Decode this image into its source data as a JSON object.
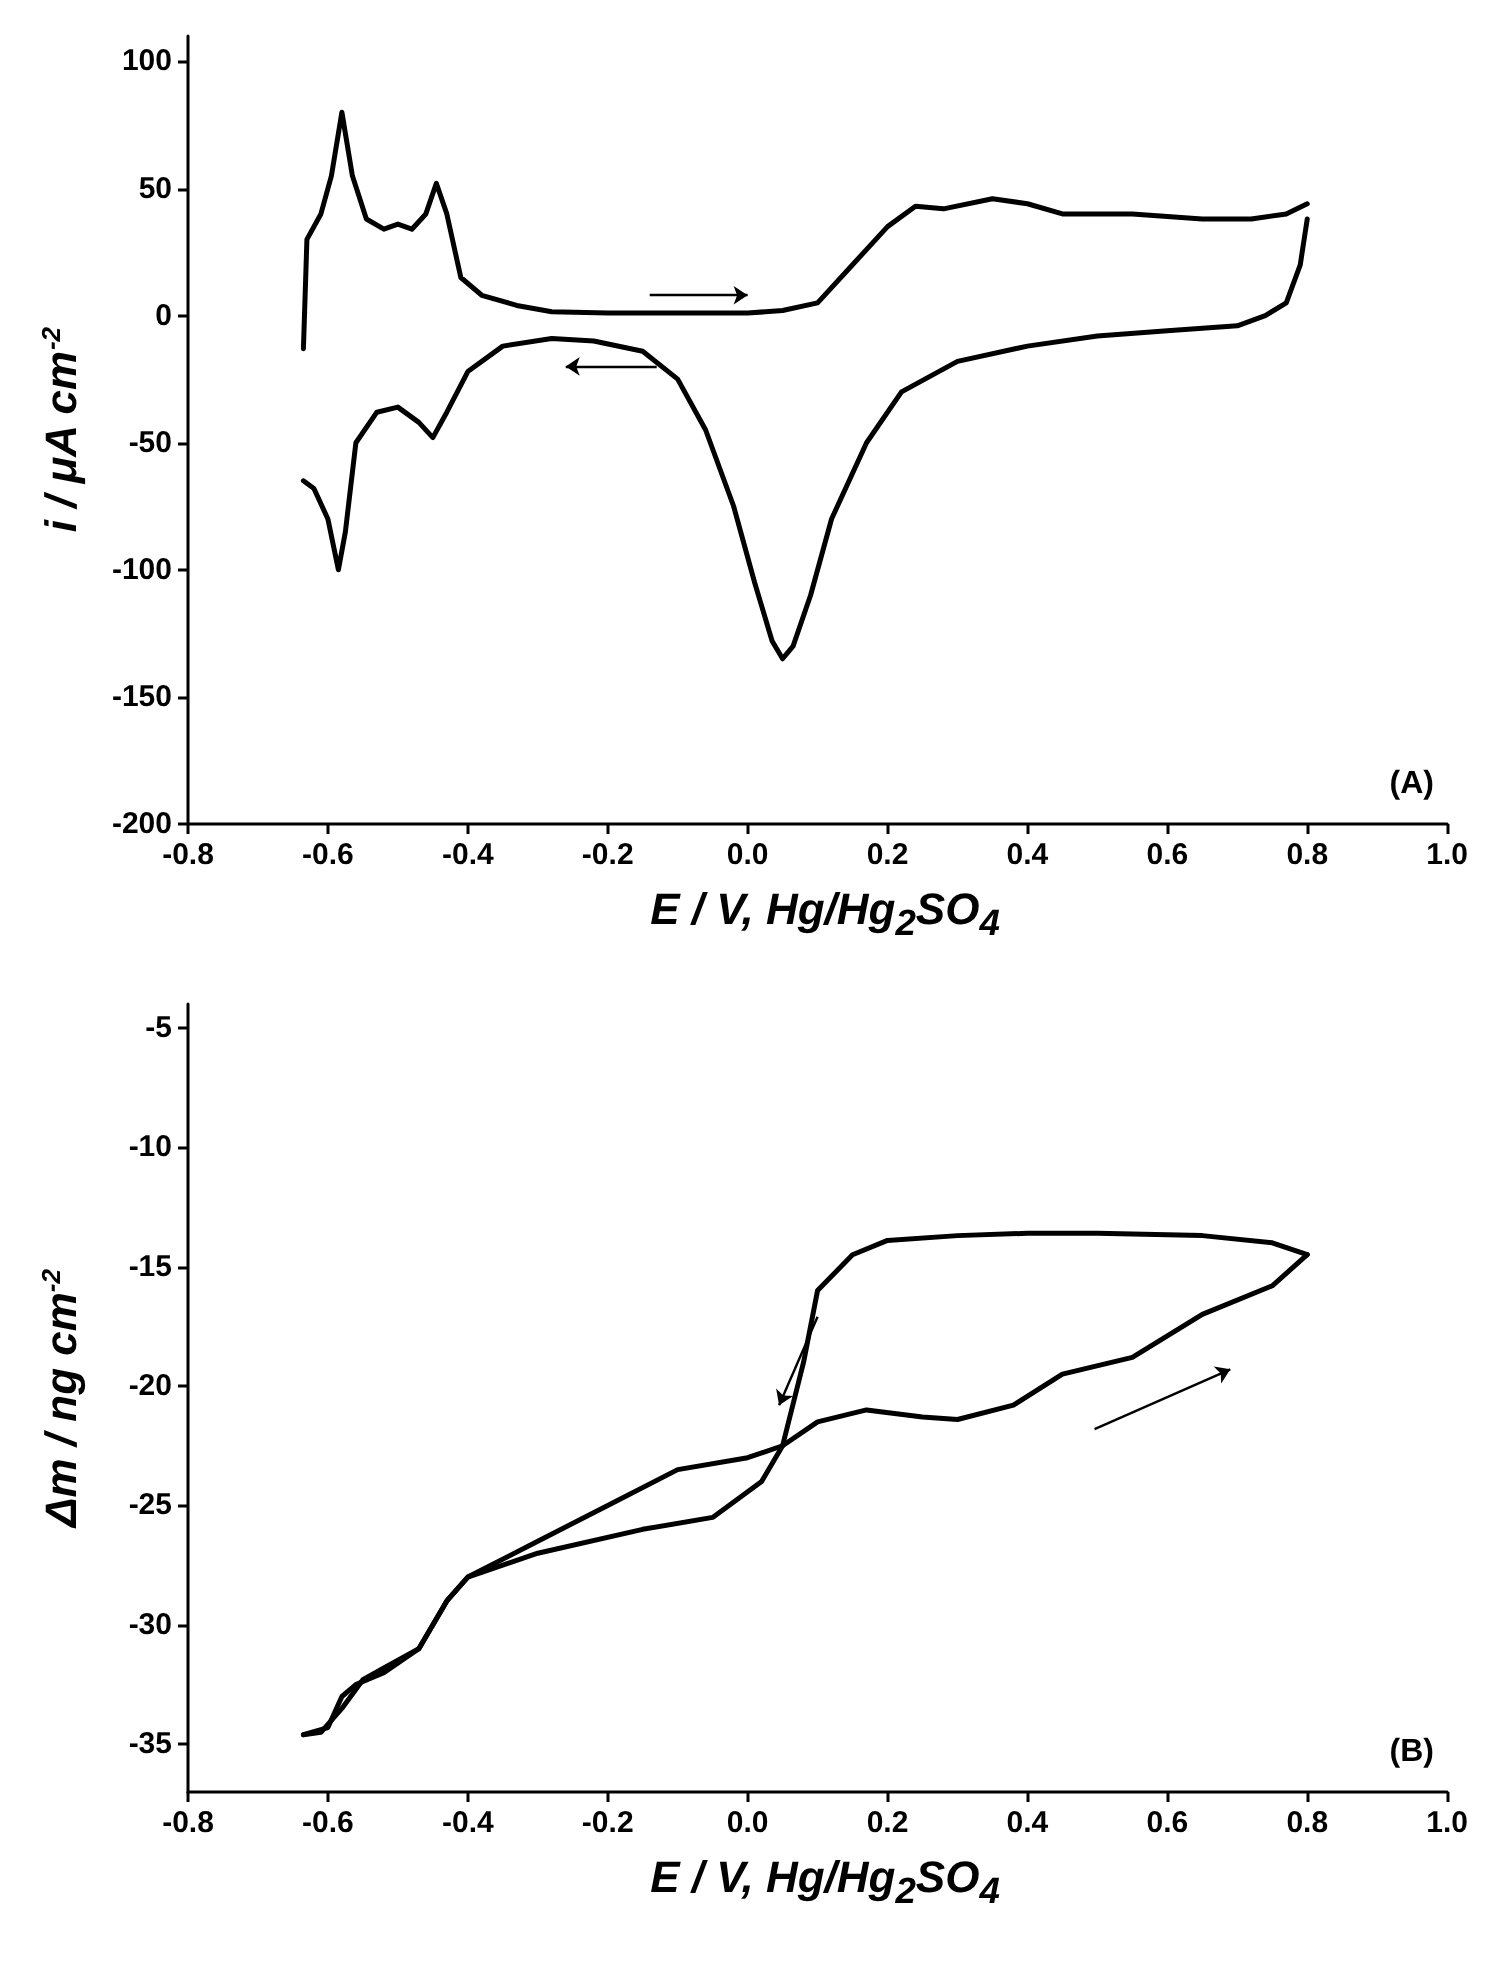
{
  "chart_data": [
    {
      "type": "line",
      "ylabel": "i / μA cm$^{-2}$",
      "annotations": [
        "(A)"
      ],
      "grid": false,
      "xlabel": "E / V, Hg/Hg$_{2}$SO$_{4}$",
      "marker": "none",
      "line_style": "solid",
      "xlim": [
        -0.8,
        1.0
      ],
      "xticks": [
        {
          "value": -0.8,
          "label": "-0.8"
        },
        {
          "value": -0.6,
          "label": "-0.6"
        },
        {
          "value": -0.4,
          "label": "-0.4"
        },
        {
          "value": -0.2,
          "label": "-0.2"
        },
        {
          "value": 0,
          "label": "0.0"
        },
        {
          "value": 0.2,
          "label": "0.2"
        },
        {
          "value": 0.4,
          "label": "0.4"
        },
        {
          "value": 0.6,
          "label": "0.6"
        },
        {
          "value": 0.8,
          "label": "0.8"
        },
        {
          "value": 1.0,
          "label": "1.0"
        }
      ],
      "ylim": [
        -200,
        110
      ],
      "yticks": [
        -200,
        -150,
        -100,
        -50,
        0,
        50,
        100
      ],
      "series": [
        {
          "color": "#000000",
          "x": [
            -0.635,
            -0.63,
            -0.61,
            -0.595,
            -0.58,
            -0.565,
            -0.545,
            -0.52,
            -0.5,
            -0.48,
            -0.46,
            -0.445,
            -0.43,
            -0.41,
            -0.38,
            -0.33,
            -0.28,
            -0.2,
            0,
            0.05,
            0.1,
            0.15,
            0.2,
            0.24,
            0.28,
            0.35,
            0.4,
            0.45,
            0.55,
            0.65,
            0.72,
            0.77,
            0.8
          ],
          "values": [
            -13,
            30,
            40,
            55,
            80,
            55,
            38,
            34,
            36,
            34,
            40,
            52,
            40,
            15,
            8,
            4,
            1.5,
            1,
            1,
            2,
            5,
            20,
            35,
            43,
            42,
            46,
            44,
            40,
            40,
            38,
            38,
            40,
            44
          ]
        },
        {
          "color": "#000000",
          "x": [
            0.8,
            0.79,
            0.77,
            0.74,
            0.7,
            0.6,
            0.5,
            0.4,
            0.3,
            0.22,
            0.17,
            0.12,
            0.09,
            0.065,
            0.05,
            0.035,
            0.01,
            -0.02,
            -0.06,
            -0.1,
            -0.15,
            -0.22,
            -0.28,
            -0.35,
            -0.4,
            -0.43,
            -0.45,
            -0.47,
            -0.5,
            -0.53,
            -0.56,
            -0.575,
            -0.585,
            -0.6,
            -0.62,
            -0.635
          ],
          "values": [
            38,
            20,
            5,
            0,
            -4,
            -6,
            -8,
            -12,
            -18,
            -30,
            -50,
            -80,
            -110,
            -130,
            -135,
            -128,
            -105,
            -75,
            -45,
            -25,
            -14,
            -10,
            -9,
            -12,
            -22,
            -38,
            -48,
            -42,
            -36,
            -38,
            -50,
            -85,
            -100,
            -80,
            -68,
            -65
          ]
        }
      ]
    },
    {
      "type": "line",
      "ylabel": "Δm / ng cm$^{-2}$",
      "annotations": [
        "(B)"
      ],
      "grid": false,
      "xlabel": "E / V, Hg/Hg$_{2}$SO$_{4}$",
      "marker": "none",
      "line_style": "solid",
      "xlim": [
        -0.8,
        1.0
      ],
      "xticks": [
        {
          "value": -0.8,
          "label": "-0.8"
        },
        {
          "value": -0.6,
          "label": "-0.6"
        },
        {
          "value": -0.4,
          "label": "-0.4"
        },
        {
          "value": -0.2,
          "label": "-0.2"
        },
        {
          "value": 0,
          "label": "0.0"
        },
        {
          "value": 0.2,
          "label": "0.2"
        },
        {
          "value": 0.4,
          "label": "0.4"
        },
        {
          "value": 0.6,
          "label": "0.6"
        },
        {
          "value": 0.8,
          "label": "0.8"
        },
        {
          "value": 1.0,
          "label": "1.0"
        }
      ],
      "ylim": [
        -37,
        -4
      ],
      "yticks": [
        -35,
        -30,
        -25,
        -20,
        -15,
        -10,
        -5
      ],
      "series": [
        {
          "color": "#000000",
          "x": [
            -0.635,
            -0.6,
            -0.58,
            -0.56,
            -0.52,
            -0.47,
            -0.43,
            -0.4,
            -0.3,
            -0.2,
            -0.1,
            0,
            0.05,
            0.1,
            0.17,
            0.25,
            0.3,
            0.38,
            0.45,
            0.55,
            0.65,
            0.75,
            0.8
          ],
          "values": [
            -34.6,
            -34.3,
            -33,
            -32.5,
            -32,
            -31,
            -29,
            -28,
            -26.5,
            -25,
            -23.5,
            -23,
            -22.5,
            -21.5,
            -21,
            -21.3,
            -21.4,
            -20.8,
            -19.5,
            -18.8,
            -17,
            -15.8,
            -14.5
          ]
        },
        {
          "color": "#000000",
          "x": [
            0.8,
            0.75,
            0.65,
            0.5,
            0.4,
            0.3,
            0.2,
            0.15,
            0.1,
            0.08,
            0.05,
            0.02,
            -0.05,
            -0.15,
            -0.3,
            -0.4,
            -0.43,
            -0.47,
            -0.52,
            -0.55,
            -0.58,
            -0.61,
            -0.635
          ],
          "values": [
            -14.5,
            -14,
            -13.7,
            -13.6,
            -13.6,
            -13.7,
            -13.9,
            -14.5,
            -16,
            -19,
            -22.5,
            -24,
            -25.5,
            -26,
            -27,
            -28,
            -29,
            -31,
            -31.8,
            -32.3,
            -33.5,
            -34.5,
            -34.6
          ]
        }
      ]
    }
  ]
}
